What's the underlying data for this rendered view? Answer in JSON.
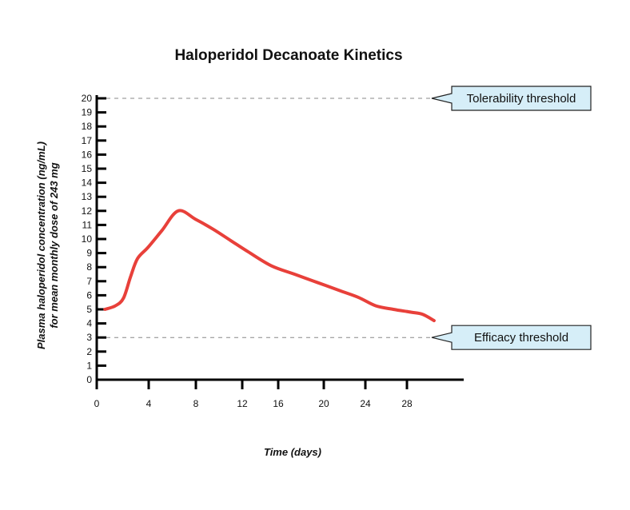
{
  "chart_data": {
    "type": "line",
    "title": "Haloperidol Decanoate Kinetics",
    "xlabel": "Time (days)",
    "ylabel_line1": "Plasma haloperidol concentration (ng/mL)",
    "ylabel_line2": "for mean monthly dose of 243 mg",
    "xlim": [
      0,
      32
    ],
    "ylim": [
      0,
      20
    ],
    "x_ticks": [
      0,
      4,
      8,
      12,
      16,
      20,
      24,
      28
    ],
    "y_ticks": [
      0,
      1,
      2,
      3,
      4,
      5,
      6,
      7,
      8,
      9,
      10,
      11,
      12,
      13,
      14,
      15,
      16,
      17,
      18,
      19,
      20
    ],
    "series": [
      {
        "color": "#e8403a",
        "x": [
          0.7,
          1.6,
          2.3,
          2.9,
          3.5,
          4.4,
          5.6,
          7.0,
          8.5,
          10.0,
          11.5,
          13.0,
          15.0,
          17.0,
          19.0,
          21.0,
          22.5,
          24.0,
          25.5,
          27.0,
          28.0,
          29.0
        ],
        "y": [
          5.0,
          5.25,
          5.8,
          7.3,
          8.6,
          9.4,
          10.6,
          12.0,
          11.4,
          10.7,
          9.9,
          9.1,
          8.1,
          7.5,
          6.9,
          6.3,
          5.85,
          5.25,
          5.0,
          4.8,
          4.65,
          4.2
        ]
      }
    ],
    "thresholds": [
      {
        "label": "Tolerability threshold",
        "value": 20
      },
      {
        "label": "Efficacy threshold",
        "value": 3
      }
    ],
    "grid": false,
    "colors": {
      "line": "#e8403a",
      "callout_fill": "#d6eef8",
      "threshold_line": "#888888"
    }
  }
}
